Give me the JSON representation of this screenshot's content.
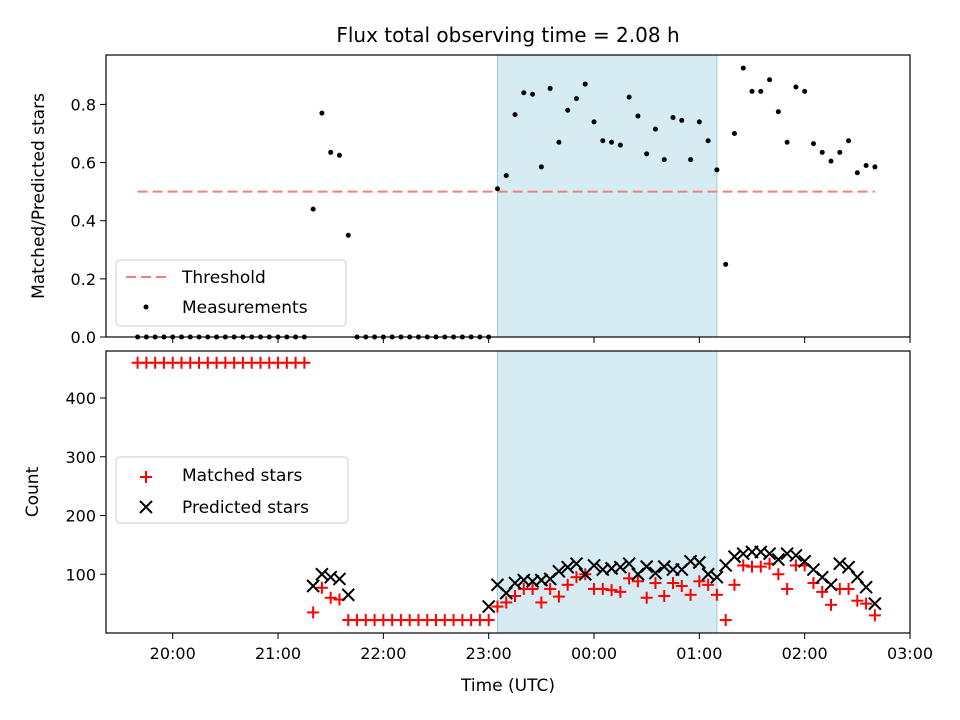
{
  "chart_data": [
    {
      "type": "scatter",
      "title": "Flux total observing time = 2.08 h",
      "xlabel": "",
      "ylabel": "Matched/Predicted stars",
      "ylim": [
        0,
        0.97
      ],
      "yticks": [
        0.0,
        0.2,
        0.4,
        0.6,
        0.8
      ],
      "ytick_labels": [
        "0.0",
        "0.2",
        "0.4",
        "0.6",
        "0.8"
      ],
      "shaded_range": [
        "23:05",
        "01:10"
      ],
      "legend": {
        "placement": "lower-left",
        "entries": [
          "Threshold",
          "Measurements"
        ]
      },
      "threshold": {
        "name": "Threshold",
        "x": [
          "19:40",
          "02:40"
        ],
        "y": 0.5,
        "color": "#f08080"
      },
      "series": [
        {
          "name": "Measurements",
          "color": "#000000",
          "x": [
            "19:40",
            "19:45",
            "19:50",
            "19:55",
            "20:00",
            "20:05",
            "20:10",
            "20:15",
            "20:20",
            "20:25",
            "20:30",
            "20:35",
            "20:40",
            "20:45",
            "20:50",
            "20:55",
            "21:00",
            "21:05",
            "21:10",
            "21:15",
            "21:20",
            "21:25",
            "21:30",
            "21:35",
            "21:40",
            "21:45",
            "21:50",
            "21:55",
            "22:00",
            "22:05",
            "22:10",
            "22:15",
            "22:20",
            "22:25",
            "22:30",
            "22:35",
            "22:40",
            "22:45",
            "22:50",
            "22:55",
            "23:00",
            "23:05",
            "23:10",
            "23:15",
            "23:20",
            "23:25",
            "23:30",
            "23:35",
            "23:40",
            "23:45",
            "23:50",
            "23:55",
            "00:00",
            "00:05",
            "00:10",
            "00:15",
            "00:20",
            "00:25",
            "00:30",
            "00:35",
            "00:40",
            "00:45",
            "00:50",
            "00:55",
            "01:00",
            "01:05",
            "01:10",
            "01:15",
            "01:20",
            "01:25",
            "01:30",
            "01:35",
            "01:40",
            "01:45",
            "01:50",
            "01:55",
            "02:00",
            "02:05",
            "02:10",
            "02:15",
            "02:20",
            "02:25",
            "02:30",
            "02:35",
            "02:40"
          ],
          "y": [
            0,
            0,
            0,
            0,
            0,
            0,
            0,
            0,
            0,
            0,
            0,
            0,
            0,
            0,
            0,
            0,
            0,
            0,
            0,
            0,
            0.44,
            0.77,
            0.635,
            0.625,
            0.35,
            0,
            0,
            0,
            0,
            0,
            0,
            0,
            0,
            0,
            0,
            0,
            0,
            0,
            0,
            0,
            0,
            0.51,
            0.555,
            0.765,
            0.84,
            0.835,
            0.585,
            0.855,
            0.67,
            0.78,
            0.82,
            0.87,
            0.74,
            0.675,
            0.67,
            0.66,
            0.825,
            0.76,
            0.63,
            0.715,
            0.61,
            0.755,
            0.745,
            0.61,
            0.74,
            0.675,
            0.575,
            0.25,
            0.7,
            0.925,
            0.845,
            0.845,
            0.885,
            0.775,
            0.67,
            0.86,
            0.845,
            0.665,
            0.635,
            0.605,
            0.635,
            0.675,
            0.565,
            0.59,
            0.585
          ]
        }
      ]
    },
    {
      "type": "scatter",
      "title": "",
      "xlabel": "Time (UTC)",
      "ylabel": "Count",
      "ylim": [
        0,
        480
      ],
      "yticks": [
        100,
        200,
        300,
        400
      ],
      "ytick_labels": [
        "100",
        "200",
        "300",
        "400"
      ],
      "xlim": [
        "19:22",
        "03:00"
      ],
      "xticks": [
        "20:00",
        "21:00",
        "22:00",
        "23:00",
        "00:00",
        "01:00",
        "02:00",
        "03:00"
      ],
      "shaded_range": [
        "23:05",
        "01:10"
      ],
      "legend": {
        "placement": "center-left",
        "entries": [
          "Matched stars",
          "Predicted stars"
        ]
      },
      "series": [
        {
          "name": "Matched stars",
          "color": "#ff0000",
          "x": [
            "19:40",
            "19:45",
            "19:50",
            "19:55",
            "20:00",
            "20:05",
            "20:10",
            "20:15",
            "20:20",
            "20:25",
            "20:30",
            "20:35",
            "20:40",
            "20:45",
            "20:50",
            "20:55",
            "21:00",
            "21:05",
            "21:10",
            "21:15",
            "21:20",
            "21:25",
            "21:30",
            "21:35",
            "21:40",
            "21:45",
            "21:50",
            "21:55",
            "22:00",
            "22:05",
            "22:10",
            "22:15",
            "22:20",
            "22:25",
            "22:30",
            "22:35",
            "22:40",
            "22:45",
            "22:50",
            "22:55",
            "23:00",
            "23:05",
            "23:10",
            "23:15",
            "23:20",
            "23:25",
            "23:30",
            "23:35",
            "23:40",
            "23:45",
            "23:50",
            "23:55",
            "00:00",
            "00:05",
            "00:10",
            "00:15",
            "00:20",
            "00:25",
            "00:30",
            "00:35",
            "00:40",
            "00:45",
            "00:50",
            "00:55",
            "01:00",
            "01:05",
            "01:10",
            "01:15",
            "01:20",
            "01:25",
            "01:30",
            "01:35",
            "01:40",
            "01:45",
            "01:50",
            "01:55",
            "02:00",
            "02:05",
            "02:10",
            "02:15",
            "02:20",
            "02:25",
            "02:30",
            "02:35",
            "02:40"
          ],
          "y": [
            460,
            460,
            460,
            460,
            460,
            460,
            460,
            460,
            460,
            460,
            460,
            460,
            460,
            460,
            460,
            460,
            460,
            460,
            460,
            460,
            35,
            77,
            60,
            57,
            22,
            22,
            22,
            22,
            22,
            22,
            22,
            22,
            22,
            22,
            22,
            22,
            22,
            22,
            22,
            22,
            22,
            45,
            52,
            63,
            75,
            75,
            52,
            75,
            62,
            82,
            95,
            100,
            75,
            75,
            73,
            70,
            93,
            88,
            60,
            85,
            63,
            85,
            80,
            65,
            88,
            82,
            65,
            22,
            82,
            115,
            113,
            113,
            118,
            100,
            75,
            115,
            115,
            85,
            70,
            48,
            75,
            75,
            55,
            50,
            30
          ]
        },
        {
          "name": "Predicted stars",
          "color": "#000000",
          "x": [
            "21:20",
            "21:25",
            "21:30",
            "21:35",
            "21:40",
            "23:00",
            "23:05",
            "23:10",
            "23:15",
            "23:20",
            "23:25",
            "23:30",
            "23:35",
            "23:40",
            "23:45",
            "23:50",
            "23:55",
            "00:00",
            "00:05",
            "00:10",
            "00:15",
            "00:20",
            "00:25",
            "00:30",
            "00:35",
            "00:40",
            "00:45",
            "00:50",
            "00:55",
            "01:00",
            "01:05",
            "01:10",
            "01:15",
            "01:20",
            "01:25",
            "01:30",
            "01:35",
            "01:40",
            "01:45",
            "01:50",
            "01:55",
            "02:00",
            "02:05",
            "02:10",
            "02:15",
            "02:20",
            "02:25",
            "02:30",
            "02:35",
            "02:40"
          ],
          "y": [
            80,
            100,
            95,
            92,
            65,
            45,
            82,
            68,
            85,
            90,
            88,
            90,
            92,
            105,
            112,
            118,
            100,
            115,
            108,
            110,
            112,
            118,
            100,
            113,
            102,
            113,
            108,
            108,
            122,
            120,
            100,
            95,
            115,
            130,
            135,
            138,
            138,
            135,
            125,
            135,
            132,
            122,
            108,
            95,
            82,
            118,
            112,
            95,
            78,
            50
          ]
        }
      ]
    }
  ]
}
